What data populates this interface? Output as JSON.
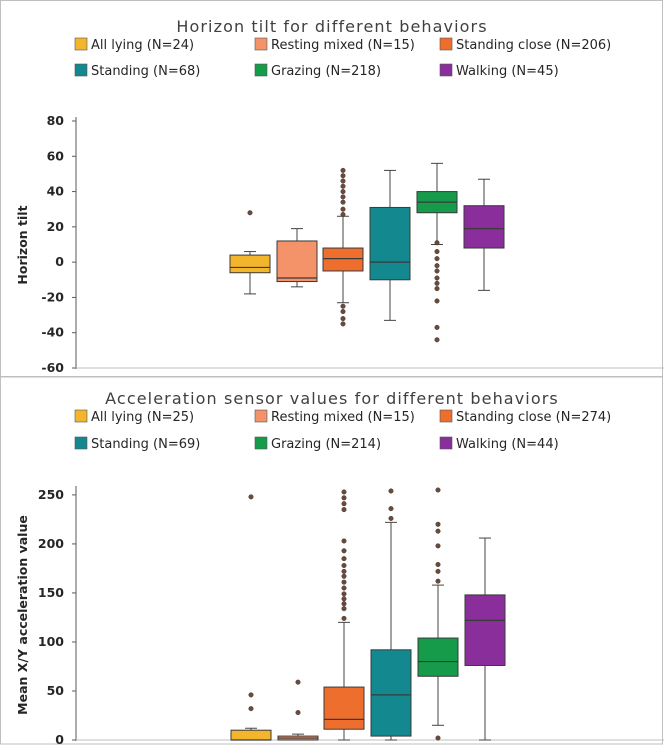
{
  "chart_data": [
    {
      "type": "box",
      "title": "Horizon tilt for different behaviors",
      "xlabel": "",
      "ylabel": "Horizon tilt",
      "ylim": [
        -60,
        80
      ],
      "yticks": [
        80,
        60,
        40,
        20,
        0,
        -20,
        -40,
        -60
      ],
      "grid": false,
      "legend_position": "top",
      "series": [
        {
          "name": "All lying (N=24)",
          "color": "#f2b52c",
          "min": -18,
          "q1": -6,
          "median": -3,
          "q3": 4,
          "max": 6,
          "outliers": [
            28
          ]
        },
        {
          "name": "Resting mixed (N=15)",
          "color": "#f4936a",
          "min": -14,
          "q1": -11,
          "median": -9,
          "q3": 12,
          "max": 19,
          "outliers": []
        },
        {
          "name": "Standing close (N=206)",
          "color": "#ee6f2d",
          "min": -23,
          "q1": -5,
          "median": 2,
          "q3": 8,
          "max": 26,
          "outliers": [
            -25,
            -28,
            -32,
            -35,
            27,
            30,
            34,
            37,
            40,
            43,
            46,
            49,
            52
          ]
        },
        {
          "name": "Standing (N=68)",
          "color": "#14888f",
          "min": -33,
          "q1": -10,
          "median": 0,
          "q3": 31,
          "max": 52,
          "outliers": []
        },
        {
          "name": "Grazing (N=218)",
          "color": "#169b4a",
          "min": 10,
          "q1": 28,
          "median": 34,
          "q3": 40,
          "max": 56,
          "outliers": [
            6,
            2,
            -2,
            -5,
            -9,
            -12,
            -15,
            -22,
            -37,
            -44,
            11
          ]
        },
        {
          "name": "Walking (N=45)",
          "color": "#8a2e9c",
          "min": -16,
          "q1": 8,
          "median": 19,
          "q3": 32,
          "max": 47,
          "outliers": []
        }
      ]
    },
    {
      "type": "box",
      "title": "Acceleration sensor values for different behaviors",
      "xlabel": "",
      "ylabel": "Mean X/Y acceleration value",
      "ylim": [
        0,
        255
      ],
      "yticks": [
        250,
        200,
        150,
        100,
        50,
        0
      ],
      "grid": false,
      "legend_position": "top",
      "series": [
        {
          "name": "All lying (N=25)",
          "color": "#f2b52c",
          "min": 0,
          "q1": 0,
          "median": 0,
          "q3": 10,
          "max": 12,
          "outliers": [
            32,
            46,
            248
          ]
        },
        {
          "name": "Resting mixed (N=15)",
          "color": "#f4936a",
          "min": 0,
          "q1": 0,
          "median": 2,
          "q3": 4,
          "max": 6,
          "outliers": [
            28,
            59
          ]
        },
        {
          "name": "Standing close (N=274)",
          "color": "#ee6f2d",
          "min": 0,
          "q1": 11,
          "median": 21,
          "q3": 54,
          "max": 120,
          "outliers": [
            124,
            134,
            139,
            144,
            149,
            155,
            161,
            167,
            172,
            178,
            185,
            193,
            203,
            235,
            241,
            247,
            253
          ]
        },
        {
          "name": "Standing (N=69)",
          "color": "#14888f",
          "min": 0,
          "q1": 4,
          "median": 46,
          "q3": 92,
          "max": 222,
          "outliers": [
            226,
            236,
            254
          ]
        },
        {
          "name": "Grazing (N=214)",
          "color": "#169b4a",
          "min": 15,
          "q1": 65,
          "median": 80,
          "q3": 104,
          "max": 158,
          "outliers": [
            2,
            162,
            172,
            179,
            198,
            213,
            220,
            255
          ]
        },
        {
          "name": "Walking (N=44)",
          "color": "#8a2e9c",
          "min": 0,
          "q1": 76,
          "median": 122,
          "q3": 148,
          "max": 206,
          "outliers": []
        }
      ]
    }
  ]
}
